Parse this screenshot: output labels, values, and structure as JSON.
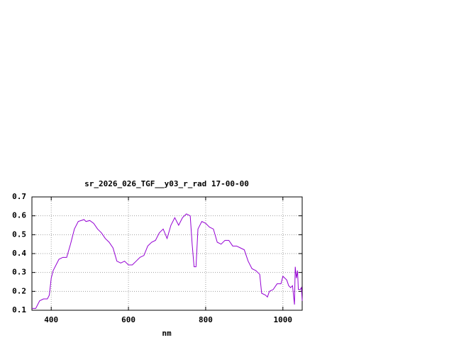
{
  "chart_data": {
    "type": "line",
    "title": "sr_2026_026_TGF__y03_r_rad 17-00-00",
    "x_label": "nm",
    "x": [
      350,
      360,
      370,
      380,
      390,
      395,
      400,
      405,
      420,
      430,
      440,
      450,
      460,
      470,
      485,
      490,
      500,
      510,
      520,
      530,
      540,
      550,
      560,
      570,
      580,
      590,
      600,
      610,
      620,
      630,
      640,
      650,
      660,
      670,
      680,
      690,
      700,
      710,
      720,
      730,
      740,
      750,
      760,
      765,
      770,
      775,
      780,
      790,
      800,
      810,
      820,
      830,
      840,
      850,
      860,
      870,
      880,
      890,
      900,
      910,
      920,
      930,
      940,
      945,
      955,
      960,
      965,
      975,
      985,
      995,
      1000,
      1010,
      1015,
      1020,
      1025,
      1030,
      1032,
      1035,
      1038,
      1040,
      1045,
      1048,
      1050
    ],
    "series": [
      {
        "name": "sr_2026_026_TGF__y03_r_rad 17-00-00",
        "color": "#9400d3",
        "values": [
          0.11,
          0.11,
          0.15,
          0.16,
          0.16,
          0.18,
          0.27,
          0.31,
          0.37,
          0.38,
          0.38,
          0.45,
          0.53,
          0.57,
          0.58,
          0.57,
          0.575,
          0.56,
          0.53,
          0.51,
          0.48,
          0.46,
          0.43,
          0.36,
          0.35,
          0.36,
          0.34,
          0.34,
          0.36,
          0.38,
          0.39,
          0.44,
          0.46,
          0.47,
          0.51,
          0.53,
          0.48,
          0.55,
          0.59,
          0.55,
          0.59,
          0.61,
          0.6,
          0.45,
          0.33,
          0.33,
          0.53,
          0.57,
          0.56,
          0.54,
          0.53,
          0.46,
          0.45,
          0.47,
          0.47,
          0.44,
          0.44,
          0.43,
          0.42,
          0.36,
          0.32,
          0.31,
          0.29,
          0.19,
          0.18,
          0.17,
          0.2,
          0.21,
          0.24,
          0.24,
          0.28,
          0.26,
          0.23,
          0.22,
          0.23,
          0.13,
          0.33,
          0.27,
          0.31,
          0.21,
          0.21,
          0.22,
          0.15
        ]
      }
    ],
    "xlim": [
      350,
      1050
    ],
    "xticks": [
      400,
      600,
      800,
      1000
    ],
    "ylim": [
      0.1,
      0.7
    ],
    "yticks": [
      0.1,
      0.2,
      0.3,
      0.4,
      0.5,
      0.6,
      0.7
    ],
    "grid": true
  }
}
